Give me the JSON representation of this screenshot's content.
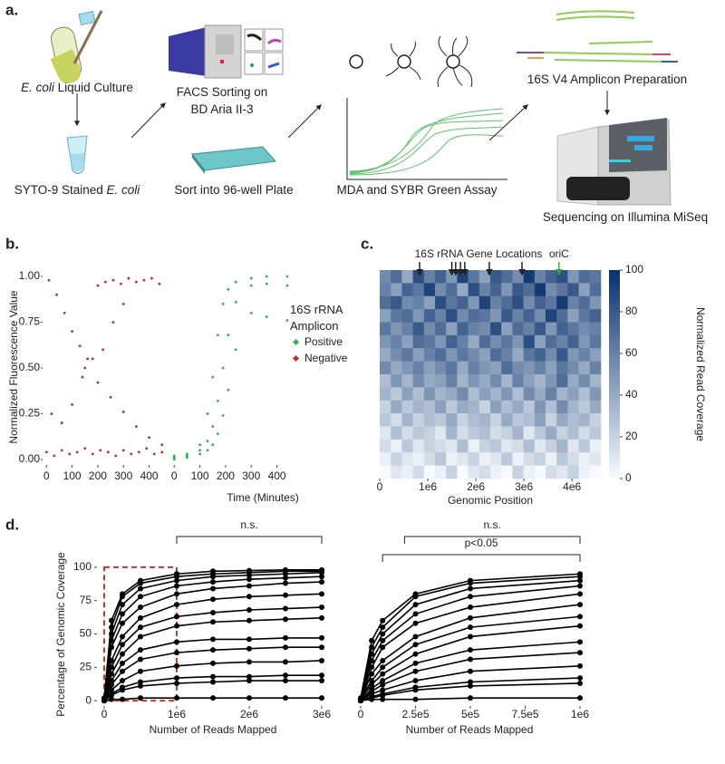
{
  "panel_labels": [
    "a.",
    "b.",
    "c.",
    "d."
  ],
  "panel_a": {
    "steps": [
      {
        "lines": [
          [
            {
              "text": "E. coli",
              "italic": true
            },
            {
              "text": " Liquid Culture"
            }
          ]
        ]
      },
      {
        "lines": [
          [
            {
              "text": "SYTO-9 Stained "
            },
            {
              "text": "E. coli",
              "italic": true
            }
          ]
        ]
      },
      {
        "lines": [
          [
            {
              "text": "FACS Sorting on"
            }
          ],
          [
            {
              "text": "BD Aria II-3"
            }
          ]
        ]
      },
      {
        "lines": [
          [
            {
              "text": "Sort into 96-well Plate"
            }
          ]
        ]
      },
      {
        "lines": [
          [
            {
              "text": "MDA and SYBR Green Assay"
            }
          ]
        ]
      },
      {
        "lines": [
          [
            {
              "text": "16S V4 Amplicon Preparation"
            }
          ]
        ]
      },
      {
        "lines": [
          [
            {
              "text": "Sequencing on Illumina MiSeq"
            }
          ]
        ]
      }
    ]
  },
  "chart_data": [
    {
      "type": "scatter",
      "facet": true,
      "legend_reversed": true,
      "xlabel": "Time (Minutes)",
      "ylabel": "Normalized Fluorescence Value",
      "legend_title": "16S rRNA Amplicon",
      "xlim": [
        -15,
        465
      ],
      "xticks": [
        0,
        100,
        200,
        300,
        400
      ],
      "ylim": [
        -0.03,
        1.03
      ],
      "yticks": [
        {
          "value": 0,
          "label": "0.00"
        },
        {
          "value": 0.25,
          "label": "0.25"
        },
        {
          "value": 0.5,
          "label": "0.50"
        },
        {
          "value": 0.75,
          "label": "0.75"
        },
        {
          "value": 1,
          "label": "1.00"
        }
      ],
      "series": [
        {
          "name": "Negative",
          "color": "#b5302b",
          "x": [
            0,
            30,
            60,
            90,
            120,
            150,
            180,
            210,
            240,
            270,
            300,
            330,
            360,
            390,
            420,
            450,
            10,
            40,
            70,
            100,
            130,
            160,
            200,
            230,
            260,
            290,
            320,
            350,
            380,
            410,
            440,
            20,
            60,
            100,
            140,
            180,
            220,
            260,
            300,
            150,
            200,
            250,
            300,
            350,
            400,
            450
          ],
          "values": [
            0.04,
            0.02,
            0.05,
            0.03,
            0.04,
            0.06,
            0.03,
            0.05,
            0.04,
            0.02,
            0.05,
            0.03,
            0.04,
            0.06,
            0.03,
            0.04,
            0.98,
            0.9,
            0.8,
            0.7,
            0.62,
            0.55,
            0.95,
            0.97,
            0.98,
            0.96,
            0.99,
            0.97,
            0.98,
            0.99,
            0.96,
            0.25,
            0.2,
            0.3,
            0.45,
            0.55,
            0.6,
            0.75,
            0.85,
            0.5,
            0.42,
            0.34,
            0.26,
            0.18,
            0.12,
            0.08
          ]
        },
        {
          "name": "Positive",
          "color": "#2db34a",
          "x": [
            0,
            50,
            100,
            130,
            150,
            170,
            190,
            210,
            240,
            300,
            360,
            440,
            0,
            50,
            100,
            130,
            150,
            170,
            190,
            210,
            240,
            300,
            360,
            440,
            0,
            50,
            100,
            130,
            150,
            170,
            190,
            210,
            240,
            300,
            360,
            440
          ],
          "values": [
            0.01,
            0.02,
            0.08,
            0.25,
            0.45,
            0.68,
            0.85,
            0.93,
            0.97,
            0.99,
            1.0,
            1.0,
            0.02,
            0.03,
            0.05,
            0.1,
            0.18,
            0.32,
            0.5,
            0.68,
            0.86,
            0.95,
            0.96,
            0.95,
            0.0,
            0.01,
            0.03,
            0.05,
            0.08,
            0.14,
            0.24,
            0.38,
            0.6,
            0.8,
            0.78,
            0.76
          ]
        }
      ]
    },
    {
      "type": "heatmap",
      "xlabel": "Genomic Position",
      "xlim": [
        0,
        4600000
      ],
      "xticks": [
        0,
        {
          "value": 1000000,
          "label": "1e6"
        },
        {
          "value": 2000000,
          "label": "2e6"
        },
        {
          "value": 3000000,
          "label": "3e6"
        },
        {
          "value": 4000000,
          "label": "4e6"
        }
      ],
      "colorscale": [
        "#f7fbff",
        "#08306b"
      ],
      "clim": [
        0,
        100
      ],
      "cticks": [
        0,
        20,
        40,
        60,
        80,
        100
      ],
      "colorbar_label": "Normalized Read Coverage",
      "annotation": {
        "text": "16S rRNA Gene Locations",
        "positions": [
          830000,
          1500000,
          1580000,
          1680000,
          1770000,
          2280000,
          2960000
        ],
        "color": "#000000"
      },
      "marker": {
        "text": "oriC",
        "position": 3730000,
        "color": "#2e9e3e"
      },
      "z": [
        [
          55,
          70,
          40,
          85,
          60,
          75,
          50,
          90,
          65,
          45,
          80,
          70,
          55,
          95,
          60,
          75,
          85,
          50,
          70,
          65
        ],
        [
          60,
          45,
          75,
          65,
          90,
          55,
          70,
          40,
          85,
          60,
          75,
          50,
          80,
          70,
          95,
          55,
          65,
          80,
          45,
          70
        ],
        [
          70,
          80,
          55,
          60,
          45,
          85,
          65,
          75,
          50,
          90,
          60,
          70,
          85,
          55,
          75,
          65,
          95,
          60,
          70,
          50
        ],
        [
          45,
          65,
          70,
          50,
          75,
          60,
          85,
          55,
          70,
          65,
          50,
          80,
          60,
          75,
          55,
          90,
          70,
          45,
          65,
          75
        ],
        [
          65,
          50,
          60,
          80,
          55,
          70,
          45,
          75,
          60,
          55,
          85,
          45,
          70,
          60,
          80,
          50,
          75,
          65,
          55,
          60
        ],
        [
          50,
          60,
          45,
          70,
          65,
          50,
          75,
          60,
          40,
          70,
          55,
          65,
          50,
          85,
          45,
          70,
          60,
          75,
          50,
          65
        ],
        [
          40,
          55,
          65,
          45,
          60,
          70,
          50,
          65,
          55,
          45,
          70,
          60,
          40,
          65,
          75,
          55,
          80,
          50,
          60,
          45
        ],
        [
          55,
          40,
          50,
          60,
          45,
          55,
          65,
          40,
          60,
          50,
          45,
          70,
          55,
          50,
          60,
          45,
          65,
          55,
          40,
          60
        ],
        [
          30,
          50,
          35,
          55,
          40,
          45,
          60,
          35,
          50,
          40,
          55,
          35,
          60,
          45,
          35,
          50,
          70,
          40,
          55,
          35
        ],
        [
          35,
          25,
          45,
          30,
          50,
          35,
          40,
          55,
          30,
          45,
          35,
          50,
          30,
          55,
          40,
          60,
          35,
          45,
          30,
          50
        ],
        [
          20,
          40,
          25,
          35,
          30,
          45,
          25,
          40,
          35,
          20,
          45,
          30,
          40,
          25,
          50,
          30,
          55,
          35,
          25,
          40
        ],
        [
          25,
          15,
          35,
          20,
          30,
          25,
          40,
          20,
          30,
          35,
          20,
          40,
          25,
          30,
          45,
          20,
          40,
          30,
          35,
          20
        ],
        [
          10,
          30,
          15,
          25,
          20,
          10,
          35,
          15,
          25,
          30,
          15,
          20,
          35,
          10,
          25,
          40,
          20,
          30,
          15,
          25
        ],
        [
          15,
          5,
          25,
          10,
          20,
          15,
          10,
          30,
          5,
          20,
          25,
          10,
          15,
          30,
          10,
          20,
          35,
          10,
          25,
          5
        ],
        [
          5,
          20,
          10,
          5,
          15,
          25,
          5,
          10,
          20,
          5,
          10,
          25,
          5,
          15,
          20,
          5,
          25,
          15,
          5,
          10
        ],
        [
          0,
          10,
          5,
          15,
          0,
          5,
          20,
          0,
          10,
          15,
          5,
          0,
          20,
          5,
          0,
          15,
          10,
          20,
          5,
          0
        ]
      ]
    },
    {
      "type": "line",
      "color": "#000000",
      "xlabel": "Number of Reads Mapped",
      "ylabel": "Percentage of Genomic Coverage",
      "xlim": [
        -100000,
        3100000
      ],
      "xticks": [
        0,
        {
          "value": 1000000,
          "label": "1e6"
        },
        {
          "value": 2000000,
          "label": "2e6"
        },
        {
          "value": 3000000,
          "label": "3e6"
        }
      ],
      "ylim": [
        -4,
        104
      ],
      "yticks": [
        0,
        25,
        50,
        75,
        100
      ],
      "zoom_box": {
        "x": [
          0,
          1000000
        ],
        "y": [
          0,
          100
        ],
        "color": "#c0392b"
      },
      "annotations": [
        {
          "text": "n.s.",
          "x": [
            1000000,
            3000000
          ]
        }
      ],
      "x": [
        0,
        100000,
        250000,
        500000,
        1000000,
        1500000,
        2000000,
        2500000,
        3000000
      ],
      "series": [
        {
          "values": [
            2,
            60,
            80,
            90,
            95,
            97,
            97.5,
            98,
            98
          ]
        },
        {
          "values": [
            1,
            55,
            78,
            88,
            93,
            95,
            96,
            97,
            97
          ]
        },
        {
          "values": [
            1,
            50,
            72,
            84,
            90,
            93,
            94,
            95,
            96
          ]
        },
        {
          "values": [
            1,
            45,
            65,
            78,
            86,
            89,
            91,
            92,
            93
          ]
        },
        {
          "values": [
            1,
            40,
            58,
            70,
            80,
            84,
            86,
            88,
            89
          ]
        },
        {
          "values": [
            1,
            30,
            48,
            62,
            72,
            76,
            78,
            79,
            80
          ]
        },
        {
          "values": [
            1,
            25,
            42,
            55,
            63,
            66,
            68,
            69,
            70
          ]
        },
        {
          "values": [
            1,
            20,
            35,
            48,
            56,
            59,
            60,
            61,
            62
          ]
        },
        {
          "values": [
            0,
            15,
            28,
            38,
            44,
            46,
            46,
            47,
            47
          ]
        },
        {
          "values": [
            0,
            12,
            22,
            31,
            36,
            38,
            39,
            40,
            40
          ]
        },
        {
          "values": [
            0,
            8,
            15,
            22,
            26,
            28,
            29,
            29,
            30
          ]
        },
        {
          "values": [
            0,
            5,
            10,
            14,
            17,
            18,
            18,
            19,
            19
          ]
        },
        {
          "values": [
            0,
            4,
            8,
            11,
            13,
            14,
            15,
            15,
            15
          ]
        },
        {
          "values": [
            0,
            1,
            1,
            2,
            2,
            2,
            2,
            2,
            2
          ]
        }
      ]
    },
    {
      "type": "line",
      "color": "#000000",
      "xlabel": "Number of Reads Mapped",
      "xlim": [
        -33000,
        1033000
      ],
      "xticks": [
        0,
        {
          "value": 250000,
          "label": "2.5e5"
        },
        {
          "value": 500000,
          "label": "5e5"
        },
        {
          "value": 750000,
          "label": "7.5e5"
        },
        {
          "value": 1000000,
          "label": "1e6"
        }
      ],
      "ylim": [
        -4,
        104
      ],
      "annotations": [
        {
          "text": "n.s.",
          "x": [
            200000,
            1000000
          ]
        },
        {
          "text": "p<0.05",
          "x": [
            100000,
            1000000
          ]
        }
      ],
      "x": [
        0,
        50000,
        100000,
        250000,
        500000,
        1000000
      ],
      "series": [
        {
          "values": [
            2,
            45,
            60,
            80,
            90,
            95
          ]
        },
        {
          "values": [
            1,
            40,
            55,
            78,
            88,
            93
          ]
        },
        {
          "values": [
            1,
            35,
            50,
            72,
            84,
            90
          ]
        },
        {
          "values": [
            1,
            30,
            45,
            65,
            78,
            86
          ]
        },
        {
          "values": [
            1,
            25,
            40,
            58,
            70,
            80
          ]
        },
        {
          "values": [
            1,
            20,
            30,
            48,
            62,
            72
          ]
        },
        {
          "values": [
            1,
            15,
            25,
            42,
            55,
            63
          ]
        },
        {
          "values": [
            1,
            12,
            20,
            35,
            48,
            56
          ]
        },
        {
          "values": [
            0,
            9,
            15,
            28,
            38,
            44
          ]
        },
        {
          "values": [
            0,
            7,
            12,
            22,
            31,
            36
          ]
        },
        {
          "values": [
            0,
            5,
            8,
            15,
            22,
            26
          ]
        },
        {
          "values": [
            0,
            3,
            5,
            10,
            14,
            17
          ]
        },
        {
          "values": [
            0,
            2,
            4,
            8,
            11,
            13
          ]
        },
        {
          "values": [
            0,
            1,
            1,
            1,
            2,
            2
          ]
        }
      ]
    }
  ]
}
